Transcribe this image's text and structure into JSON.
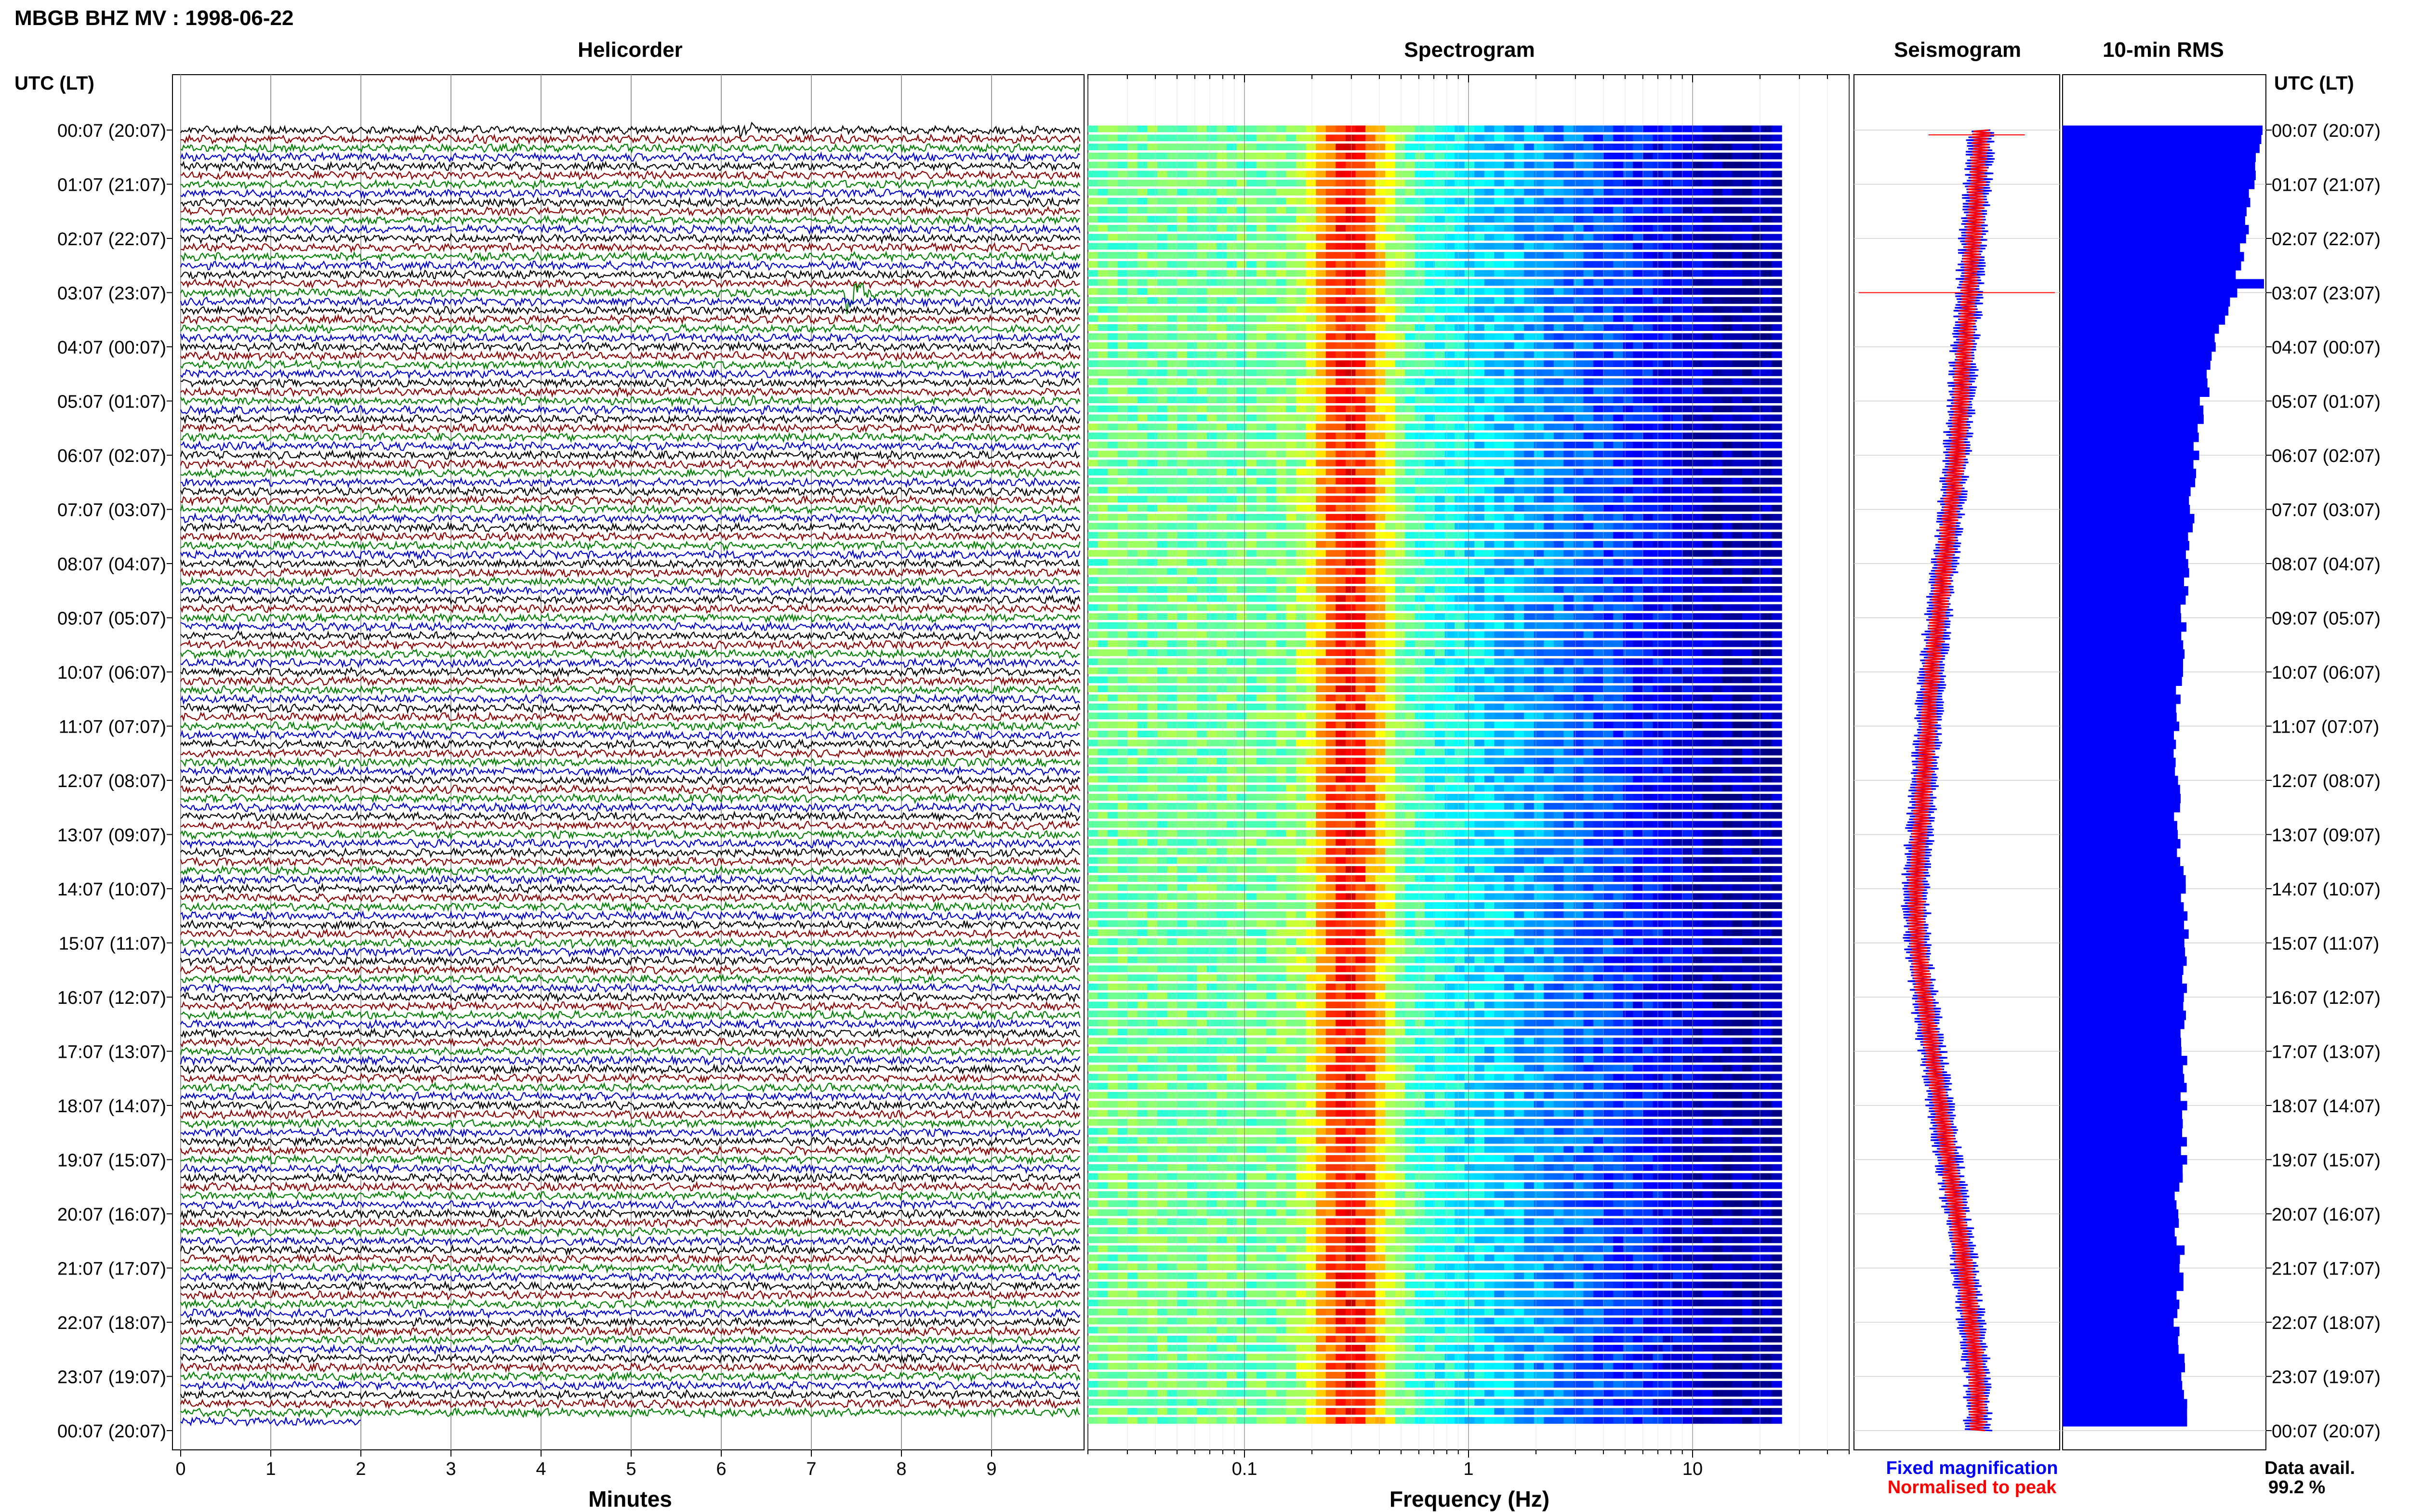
{
  "title": "MBGB BHZ MV : 1998-06-22",
  "utc_header_left": "UTC (LT)",
  "utc_header_right": "UTC (LT)",
  "colors": {
    "trace_cycle": [
      "#000000",
      "#8b0000",
      "#008000",
      "#0000cd"
    ],
    "rms_bar": "#0000ff",
    "fixed_magnification": "#0000ff",
    "normalised_to_peak": "#ff0000"
  },
  "time_labels": [
    "00:07 (20:07)",
    "01:07 (21:07)",
    "02:07 (22:07)",
    "03:07 (23:07)",
    "04:07 (00:07)",
    "05:07 (01:07)",
    "06:07 (02:07)",
    "07:07 (03:07)",
    "08:07 (04:07)",
    "09:07 (05:07)",
    "10:07 (06:07)",
    "11:07 (07:07)",
    "12:07 (08:07)",
    "13:07 (09:07)",
    "14:07 (10:07)",
    "15:07 (11:07)",
    "16:07 (12:07)",
    "17:07 (13:07)",
    "18:07 (14:07)",
    "19:07 (15:07)",
    "20:07 (16:07)",
    "21:07 (17:07)",
    "22:07 (18:07)",
    "23:07 (19:07)",
    "00:07 (20:07)"
  ],
  "chart_data": [
    {
      "type": "line",
      "panel": "helicorder",
      "title": "Helicorder",
      "xlabel": "Minutes",
      "x_ticks": [
        "0",
        "1",
        "2",
        "3",
        "4",
        "5",
        "6",
        "7",
        "8",
        "9"
      ],
      "xlim": [
        0,
        10
      ],
      "rows": 144,
      "row_minutes": 10,
      "events": [
        {
          "row": 0,
          "minute": 6.2,
          "amplitude": 0.8
        },
        {
          "row": 18,
          "minute": 7.4,
          "amplitude": 3.0
        },
        {
          "row": 30,
          "minute": 6.3,
          "amplitude": 0.4
        },
        {
          "row": 84,
          "minute": 8.3,
          "amplitude": 0.4
        },
        {
          "row": 90,
          "minute": 4.1,
          "amplitude": 0.4
        }
      ],
      "data_end": {
        "row": 143,
        "minute": 2.0
      }
    },
    {
      "type": "heatmap",
      "panel": "spectrogram",
      "title": "Spectrogram",
      "xlabel": "Frequency (Hz)",
      "x_scale": "log",
      "xlim": [
        0.02,
        50
      ],
      "x_tick_labels": [
        "0.1",
        "1",
        "10"
      ],
      "data_fmax": 25,
      "colormap": "jet"
    },
    {
      "type": "line",
      "panel": "seismogram",
      "title": "Seismogram",
      "series": [
        {
          "name": "Fixed magnification",
          "color": "#0000ff"
        },
        {
          "name": "Normalised to peak",
          "color": "#ff0000"
        }
      ],
      "envelope_center_by_hour": [
        0.62,
        0.6,
        0.58,
        0.56,
        0.54,
        0.52,
        0.5,
        0.47,
        0.44,
        0.41,
        0.38,
        0.36,
        0.34,
        0.32,
        0.3,
        0.31,
        0.34,
        0.38,
        0.42,
        0.46,
        0.5,
        0.54,
        0.57,
        0.6,
        0.6
      ]
    },
    {
      "type": "bar",
      "panel": "rms",
      "title": "10-min RMS",
      "orientation": "horizontal",
      "values_by_hour": [
        0.98,
        0.94,
        0.9,
        0.85,
        0.76,
        0.7,
        0.66,
        0.64,
        0.63,
        0.6,
        0.58,
        0.57,
        0.56,
        0.58,
        0.6,
        0.62,
        0.6,
        0.6,
        0.6,
        0.6,
        0.56,
        0.6,
        0.56,
        0.6,
        0.6
      ],
      "peaks": [
        {
          "row": 17,
          "value": 1.0
        }
      ]
    }
  ],
  "legend": {
    "fixed": "Fixed magnification",
    "normalised": "Normalised to peak"
  },
  "data_avail": {
    "label": "Data avail.",
    "value": "99.2 %"
  }
}
